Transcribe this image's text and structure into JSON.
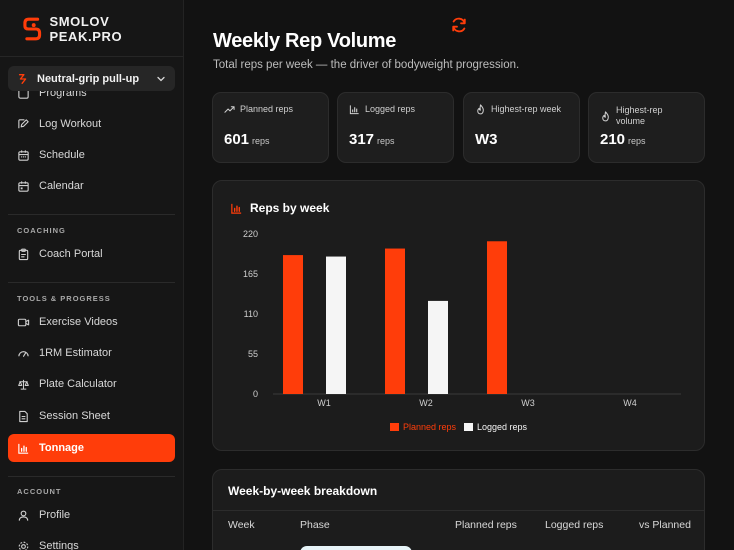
{
  "brand": {
    "name": "SMOLOV PEAK.PRO",
    "accent": "#ff3d0a"
  },
  "exercise_select": {
    "value": "Neutral-grip pull-up"
  },
  "sidebar": {
    "partial_item": "Programs",
    "items_top": [
      {
        "label": "Log Workout",
        "icon": "log-icon"
      },
      {
        "label": "Schedule",
        "icon": "schedule-icon"
      },
      {
        "label": "Calendar",
        "icon": "calendar-icon"
      }
    ],
    "sections": {
      "coaching": "COACHING",
      "tools": "TOOLS & PROGRESS",
      "account": "ACCOUNT"
    },
    "coaching_items": [
      {
        "label": "Coach Portal",
        "icon": "clipboard-icon"
      }
    ],
    "tools_items": [
      {
        "label": "Exercise Videos",
        "icon": "video-icon"
      },
      {
        "label": "1RM Estimator",
        "icon": "gauge-icon"
      },
      {
        "label": "Plate Calculator",
        "icon": "scale-icon"
      },
      {
        "label": "Session Sheet",
        "icon": "sheet-icon"
      },
      {
        "label": "Tonnage",
        "icon": "bar-chart-icon",
        "active": true
      }
    ],
    "account_items": [
      {
        "label": "Profile",
        "icon": "user-icon"
      },
      {
        "label": "Settings",
        "icon": "gear-icon"
      }
    ]
  },
  "page": {
    "title": "Weekly Rep Volume",
    "subtitle": "Total reps per week — the driver of bodyweight progression."
  },
  "stats": [
    {
      "label": "Planned reps",
      "value": "601",
      "unit": "reps",
      "icon": "trend-icon"
    },
    {
      "label": "Logged reps",
      "value": "317",
      "unit": "reps",
      "icon": "bar-chart-icon"
    },
    {
      "label": "Highest-rep week",
      "value": "W3",
      "unit": "",
      "icon": "flame-icon"
    },
    {
      "label": "Highest-rep volume",
      "value": "210",
      "unit": "reps",
      "icon": "flame-icon"
    }
  ],
  "chart_card": {
    "title": "Reps by week"
  },
  "chart_data": {
    "type": "bar",
    "title": "Reps by week",
    "categories": [
      "W1",
      "W2",
      "W3",
      "W4"
    ],
    "series": [
      {
        "name": "Planned reps",
        "values": [
          191,
          200,
          210,
          null
        ],
        "color": "#ff3d0a"
      },
      {
        "name": "Logged reps",
        "values": [
          189,
          128,
          null,
          null
        ],
        "color": "#f5f5f5"
      }
    ],
    "yticks": [
      "220",
      "165",
      "110",
      "55",
      "0"
    ],
    "ylim": [
      0,
      220
    ],
    "grid": false,
    "legend_position": "bottom"
  },
  "table": {
    "title": "Week-by-week breakdown",
    "headers": [
      "Week",
      "Phase",
      "Planned reps",
      "Logged reps",
      "vs Planned"
    ]
  }
}
